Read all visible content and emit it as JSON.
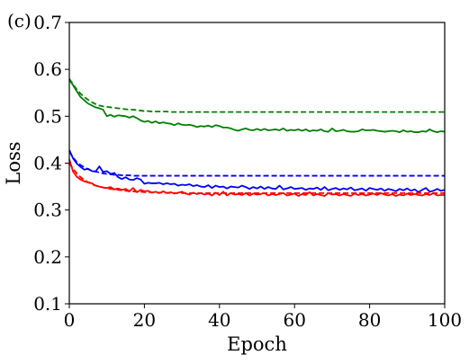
{
  "chart_data": {
    "type": "line",
    "panel_label": "(c)",
    "title": "",
    "xlabel": "Epoch",
    "ylabel": "Loss",
    "xlim": [
      0,
      100
    ],
    "ylim": [
      0.1,
      0.7
    ],
    "xticks": [
      0,
      20,
      40,
      60,
      80,
      100
    ],
    "yticks": [
      0.1,
      0.2,
      0.3,
      0.4,
      0.5,
      0.6,
      0.7
    ],
    "xtick_labels": [
      "0",
      "20",
      "40",
      "60",
      "80",
      "100"
    ],
    "ytick_labels": [
      "0.1",
      "0.2",
      "0.3",
      "0.4",
      "0.5",
      "0.6",
      "0.7"
    ],
    "grid": false,
    "legend": "none",
    "x": [
      0,
      1,
      2,
      3,
      4,
      5,
      6,
      7,
      8,
      9,
      10,
      11,
      12,
      13,
      14,
      15,
      16,
      17,
      18,
      19,
      20,
      21,
      22,
      23,
      24,
      25,
      26,
      27,
      28,
      29,
      30,
      31,
      32,
      33,
      34,
      35,
      36,
      37,
      38,
      39,
      40,
      41,
      42,
      43,
      44,
      45,
      46,
      47,
      48,
      49,
      50,
      51,
      52,
      53,
      54,
      55,
      56,
      57,
      58,
      59,
      60,
      61,
      62,
      63,
      64,
      65,
      66,
      67,
      68,
      69,
      70,
      71,
      72,
      73,
      74,
      75,
      76,
      77,
      78,
      79,
      80,
      81,
      82,
      83,
      84,
      85,
      86,
      87,
      88,
      89,
      90,
      91,
      92,
      93,
      94,
      95,
      96,
      97,
      98,
      99,
      100
    ],
    "series": [
      {
        "color": "#008000",
        "linestyle": "dashed",
        "values": [
          0.58,
          0.568,
          0.557,
          0.548,
          0.541,
          0.535,
          0.53,
          0.526,
          0.523,
          0.521,
          0.52,
          0.519,
          0.518,
          0.517,
          0.516,
          0.515,
          0.514,
          0.514,
          0.513,
          0.512,
          0.511,
          0.511,
          0.51,
          0.51,
          0.51,
          0.51,
          0.51,
          0.509,
          0.509,
          0.509,
          0.509,
          0.509,
          0.509,
          0.509,
          0.509,
          0.509,
          0.509,
          0.509,
          0.509,
          0.509,
          0.509,
          0.509,
          0.509,
          0.509,
          0.509,
          0.509,
          0.509,
          0.509,
          0.509,
          0.509,
          0.509,
          0.509,
          0.509,
          0.509,
          0.509,
          0.509,
          0.509,
          0.509,
          0.509,
          0.509,
          0.509,
          0.509,
          0.509,
          0.509,
          0.509,
          0.509,
          0.509,
          0.509,
          0.509,
          0.509,
          0.509,
          0.509,
          0.509,
          0.509,
          0.509,
          0.509,
          0.509,
          0.509,
          0.509,
          0.509,
          0.509,
          0.509,
          0.509,
          0.509,
          0.509,
          0.509,
          0.509,
          0.509,
          0.509,
          0.509,
          0.509,
          0.509,
          0.509,
          0.509,
          0.509,
          0.509,
          0.509,
          0.509,
          0.509,
          0.509,
          0.509
        ]
      },
      {
        "color": "#008000",
        "linestyle": "solid",
        "values": [
          0.578,
          0.566,
          0.553,
          0.541,
          0.534,
          0.527,
          0.523,
          0.519,
          0.517,
          0.514,
          0.5,
          0.503,
          0.499,
          0.502,
          0.501,
          0.5,
          0.497,
          0.5,
          0.496,
          0.491,
          0.488,
          0.49,
          0.486,
          0.489,
          0.485,
          0.487,
          0.485,
          0.484,
          0.481,
          0.485,
          0.482,
          0.481,
          0.482,
          0.48,
          0.477,
          0.479,
          0.478,
          0.48,
          0.477,
          0.481,
          0.479,
          0.476,
          0.476,
          0.474,
          0.471,
          0.469,
          0.472,
          0.474,
          0.471,
          0.47,
          0.473,
          0.47,
          0.473,
          0.47,
          0.471,
          0.472,
          0.47,
          0.474,
          0.469,
          0.471,
          0.47,
          0.472,
          0.469,
          0.472,
          0.468,
          0.47,
          0.469,
          0.472,
          0.468,
          0.467,
          0.474,
          0.468,
          0.469,
          0.471,
          0.468,
          0.467,
          0.467,
          0.468,
          0.472,
          0.47,
          0.47,
          0.471,
          0.469,
          0.468,
          0.467,
          0.468,
          0.469,
          0.468,
          0.466,
          0.47,
          0.467,
          0.468,
          0.466,
          0.466,
          0.468,
          0.467,
          0.472,
          0.468,
          0.466,
          0.468,
          0.467
        ]
      },
      {
        "color": "#0000ff",
        "linestyle": "dashed",
        "values": [
          0.425,
          0.412,
          0.402,
          0.396,
          0.391,
          0.387,
          0.384,
          0.382,
          0.38,
          0.378,
          0.377,
          0.376,
          0.375,
          0.375,
          0.374,
          0.374,
          0.374,
          0.373,
          0.373,
          0.373,
          0.373,
          0.373,
          0.373,
          0.373,
          0.373,
          0.373,
          0.373,
          0.373,
          0.373,
          0.373,
          0.373,
          0.373,
          0.373,
          0.373,
          0.373,
          0.373,
          0.373,
          0.373,
          0.373,
          0.373,
          0.373,
          0.373,
          0.373,
          0.373,
          0.373,
          0.373,
          0.373,
          0.373,
          0.373,
          0.373,
          0.373,
          0.373,
          0.373,
          0.373,
          0.373,
          0.373,
          0.373,
          0.373,
          0.373,
          0.373,
          0.373,
          0.373,
          0.373,
          0.373,
          0.373,
          0.373,
          0.373,
          0.373,
          0.373,
          0.373,
          0.373,
          0.373,
          0.373,
          0.373,
          0.373,
          0.373,
          0.373,
          0.373,
          0.373,
          0.373,
          0.373,
          0.373,
          0.373,
          0.373,
          0.373,
          0.373,
          0.373,
          0.373,
          0.373,
          0.373,
          0.373,
          0.373,
          0.373,
          0.373,
          0.373,
          0.373,
          0.373,
          0.373,
          0.373,
          0.373,
          0.373
        ]
      },
      {
        "color": "#0000ff",
        "linestyle": "solid",
        "values": [
          0.428,
          0.41,
          0.399,
          0.392,
          0.386,
          0.388,
          0.383,
          0.382,
          0.393,
          0.381,
          0.383,
          0.377,
          0.379,
          0.37,
          0.366,
          0.37,
          0.365,
          0.364,
          0.368,
          0.365,
          0.356,
          0.358,
          0.357,
          0.357,
          0.358,
          0.355,
          0.357,
          0.355,
          0.356,
          0.352,
          0.354,
          0.353,
          0.355,
          0.351,
          0.353,
          0.35,
          0.349,
          0.353,
          0.347,
          0.352,
          0.349,
          0.35,
          0.346,
          0.35,
          0.349,
          0.348,
          0.352,
          0.349,
          0.345,
          0.349,
          0.346,
          0.35,
          0.345,
          0.349,
          0.346,
          0.345,
          0.352,
          0.344,
          0.346,
          0.349,
          0.345,
          0.346,
          0.347,
          0.343,
          0.346,
          0.345,
          0.348,
          0.343,
          0.349,
          0.342,
          0.345,
          0.347,
          0.343,
          0.346,
          0.344,
          0.348,
          0.342,
          0.344,
          0.346,
          0.341,
          0.347,
          0.345,
          0.343,
          0.346,
          0.341,
          0.345,
          0.343,
          0.34,
          0.345,
          0.342,
          0.346,
          0.341,
          0.344,
          0.338,
          0.343,
          0.347,
          0.339,
          0.341,
          0.345,
          0.341,
          0.343
        ]
      },
      {
        "color": "#ff0000",
        "linestyle": "dashed",
        "values": [
          0.4,
          0.388,
          0.378,
          0.37,
          0.364,
          0.359,
          0.355,
          0.352,
          0.35,
          0.348,
          0.346,
          0.345,
          0.344,
          0.343,
          0.342,
          0.341,
          0.34,
          0.34,
          0.339,
          0.339,
          0.338,
          0.338,
          0.338,
          0.337,
          0.337,
          0.337,
          0.337,
          0.336,
          0.336,
          0.336,
          0.336,
          0.336,
          0.336,
          0.336,
          0.336,
          0.336,
          0.336,
          0.336,
          0.336,
          0.336,
          0.336,
          0.336,
          0.336,
          0.336,
          0.336,
          0.336,
          0.336,
          0.336,
          0.336,
          0.336,
          0.336,
          0.336,
          0.336,
          0.336,
          0.336,
          0.336,
          0.336,
          0.336,
          0.336,
          0.336,
          0.336,
          0.336,
          0.336,
          0.336,
          0.336,
          0.336,
          0.336,
          0.336,
          0.336,
          0.336,
          0.336,
          0.336,
          0.336,
          0.336,
          0.336,
          0.336,
          0.336,
          0.336,
          0.336,
          0.336,
          0.336,
          0.336,
          0.336,
          0.336,
          0.336,
          0.336,
          0.336,
          0.336,
          0.336,
          0.336,
          0.336,
          0.336,
          0.336,
          0.336,
          0.336,
          0.336,
          0.336,
          0.336,
          0.336,
          0.336,
          0.336
        ]
      },
      {
        "color": "#ff0000",
        "linestyle": "solid",
        "values": [
          0.408,
          0.382,
          0.371,
          0.365,
          0.361,
          0.359,
          0.357,
          0.352,
          0.35,
          0.348,
          0.347,
          0.349,
          0.344,
          0.346,
          0.343,
          0.345,
          0.34,
          0.347,
          0.338,
          0.343,
          0.34,
          0.341,
          0.337,
          0.339,
          0.336,
          0.34,
          0.336,
          0.338,
          0.335,
          0.337,
          0.339,
          0.335,
          0.333,
          0.337,
          0.334,
          0.336,
          0.333,
          0.335,
          0.331,
          0.337,
          0.332,
          0.339,
          0.331,
          0.336,
          0.333,
          0.334,
          0.332,
          0.336,
          0.331,
          0.335,
          0.333,
          0.334,
          0.336,
          0.331,
          0.334,
          0.332,
          0.334,
          0.336,
          0.331,
          0.333,
          0.335,
          0.33,
          0.334,
          0.332,
          0.338,
          0.331,
          0.334,
          0.332,
          0.33,
          0.336,
          0.333,
          0.334,
          0.331,
          0.334,
          0.332,
          0.33,
          0.335,
          0.332,
          0.334,
          0.331,
          0.333,
          0.335,
          0.332,
          0.336,
          0.333,
          0.331,
          0.334,
          0.33,
          0.333,
          0.331,
          0.335,
          0.332,
          0.334,
          0.332,
          0.331,
          0.334,
          0.332,
          0.336,
          0.331,
          0.332,
          0.332
        ]
      }
    ]
  }
}
